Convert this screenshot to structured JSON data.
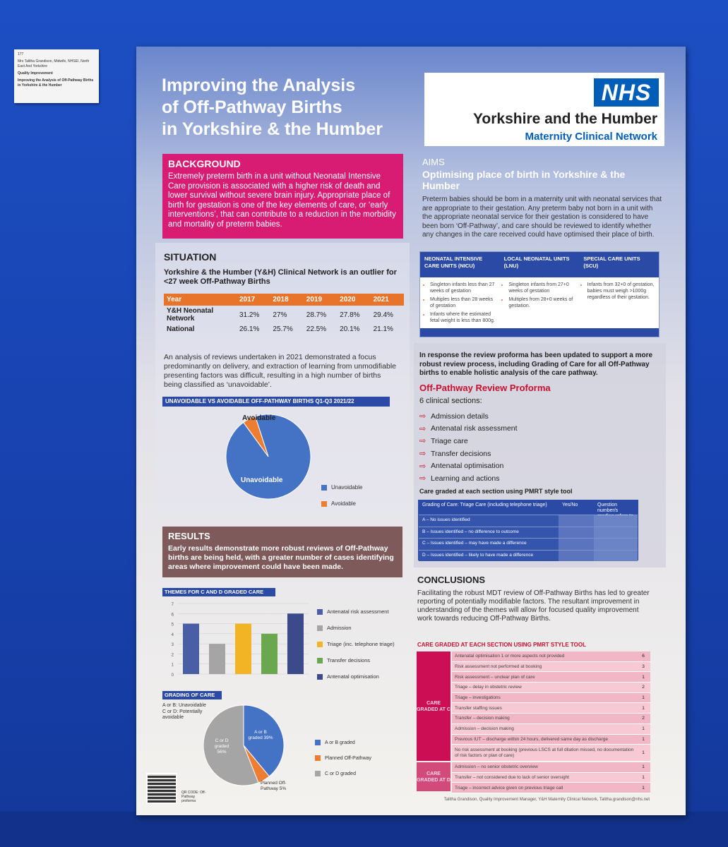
{
  "tag": {
    "line1": "177",
    "line2": "Mrs Talitha Grandison, Midwife, NHSEI, North East And Yorkshire",
    "line3": "Quality Improvement",
    "line4": "Improving the Analysis of Off-Pathway Births in Yorkshire & the Humber"
  },
  "title": {
    "line1": "Improving the Analysis",
    "line2": "of Off-Pathway Births",
    "line3": "in Yorkshire & the Humber"
  },
  "nhs": {
    "logo": "NHS",
    "region": "Yorkshire and the Humber",
    "network": "Maternity Clinical Network"
  },
  "background": {
    "heading": "BACKGROUND",
    "text": "Extremely preterm birth in a unit without Neonatal Intensive Care provision is associated with a higher risk of death and lower survival without severe brain injury. Appropriate place of birth for gestation is one of the key elements of care, or ‘early interventions’, that can contribute to a reduction in the morbidity and mortality of preterm babies."
  },
  "aims": {
    "heading": "AIMS",
    "subheading": "Optimising place of birth in Yorkshire & the Humber",
    "text": "Preterm babies should be born in a maternity unit with neonatal services that are appropriate to their gestation. Any preterm baby not born in a unit with the appropriate neonatal service for their gestation is considered to have been born ‘Off-Pathway’, and care should be reviewed to identify whether any changes in the care received could have optimised their place of birth."
  },
  "units": {
    "nicu": {
      "title": "NEONATAL INTENSIVE CARE UNITS (NICU)",
      "items": [
        "Singleton infants less than 27 weeks of gestation",
        "Multiples less than 28 weeks of gestation",
        "Infants where the estimated fetal weight is less than 800g."
      ]
    },
    "lnu": {
      "title": "LOCAL NEONATAL UNITS (LNU)",
      "items": [
        "Singleton infants from 27+0 weeks of gestation",
        "Multiples from 28+0 weeks of gestation."
      ]
    },
    "scu": {
      "title": "SPECIAL CARE UNITS (SCU)",
      "items": [
        "Infants from 32+0 of gestation, babies must weigh >1000g regardless of their gestation."
      ]
    }
  },
  "situation": {
    "heading": "SITUATION",
    "subheading": "Yorkshire & the Humber (Y&H) Clinical Network is an outlier for <27 week Off-Pathway Births",
    "table": {
      "year_label": "Year",
      "years": [
        "2017",
        "2018",
        "2019",
        "2020",
        "2021"
      ],
      "rows": [
        {
          "label": "Y&H Neonatal Network",
          "values": [
            "31.2%",
            "27%",
            "28.7%",
            "27.8%",
            "29.4%"
          ]
        },
        {
          "label": "National",
          "values": [
            "26.1%",
            "25.7%",
            "22.5%",
            "20.1%",
            "21.1%"
          ]
        }
      ]
    },
    "text": "An analysis of reviews undertaken in 2021 demonstrated a focus predominantly on delivery, and extraction of learning from unmodifiable presenting factors was difficult, resulting in a high number of births being classified as ‘unavoidable’.",
    "pie_title": "UNAVOIDABLE VS AVOIDABLE OFF-PATHWAY BIRTHS Q1-Q3 2021/22"
  },
  "results": {
    "heading": "RESULTS",
    "text": "Early results demonstrate more robust reviews of Off-Pathway births are being held, with a greater number of cases identifying areas where improvement could have been made."
  },
  "themes_title": "THEMES FOR C AND D GRADED CARE",
  "grading_title": "GRADING OF CARE",
  "grading_def": {
    "ab": "A or B: Unavoidable",
    "cd": "C or D: Potentially avoidable"
  },
  "qr": {
    "caption": "QR CODE: Off-Pathway proforma"
  },
  "proforma": {
    "intro": "In response the review proforma has been updated to support a more robust review process, including Grading of Care for all Off-Pathway births to enable holistic analysis of the care pathway.",
    "title": "Off-Pathway Review Proforma",
    "subtitle": "6 clinical sections:",
    "sections": [
      "Admission details",
      "Antenatal risk assessment",
      "Triage care",
      "Transfer decisions",
      "Antenatal optimisation",
      "Learning and actions"
    ],
    "graded_note": "Care graded at each section using PMRT style tool",
    "grade_table": {
      "col1": "Grading of Care: Triage Care (including telephone triage)",
      "col2": "Yes/No",
      "col3": "Question number/s grading refers to",
      "rows": [
        "A – No issues identified",
        "B – Issues identified – no difference to outcome",
        "C – Issues identified – may have made a difference",
        "D – Issues identified – likely to have made a difference"
      ]
    }
  },
  "conclusions": {
    "heading": "CONCLUSIONS",
    "text": "Facilitating the robust MDT review of Off-Pathway Births has led to greater reporting of potentially modifiable factors. The resultant improvement in understanding of the themes will allow for focused quality improvement work towards reducing Off-Pathway Births."
  },
  "pmrt": {
    "title": "CARE GRADED AT EACH SECTION USING PMRT STYLE TOOL",
    "group_c": "CARE GRADED AT C",
    "group_d": "CARE GRADED AT D",
    "rows_c": [
      {
        "text": "Antenatal optimisation 1 or more aspects not provided",
        "n": "6"
      },
      {
        "text": "Risk assessment not performed at booking",
        "n": "3"
      },
      {
        "text": "Risk assessment – unclear plan of care",
        "n": "1"
      },
      {
        "text": "Triage – delay in obstetric review",
        "n": "2"
      },
      {
        "text": "Triage – investigations",
        "n": "1"
      },
      {
        "text": "Transfer staffing issues",
        "n": "1"
      },
      {
        "text": "Transfer – decision making",
        "n": "2"
      },
      {
        "text": "Admission – decision making",
        "n": "1"
      },
      {
        "text": "Previous IUT – discharge within 24 hours, delivered same day as discharge",
        "n": "1"
      },
      {
        "text": "No risk assessment at booking (previous LSCS at full dilation missed, no documentation of risk factors or plan of care)",
        "n": "1"
      }
    ],
    "rows_d": [
      {
        "text": "Admission – no senior obstetric overview",
        "n": "1"
      },
      {
        "text": "Transfer – not considered due to lack of senior oversight",
        "n": "1"
      },
      {
        "text": "Triage – incorrect advice given on previous triage call",
        "n": "1"
      }
    ]
  },
  "footer": "Talitha Grandison, Quality Improvement Manager, Y&H Maternity Clinical Network, Talitha.grandison@nhs.net",
  "chart_data": [
    {
      "type": "pie",
      "title": "UNAVOIDABLE VS AVOIDABLE OFF-PATHWAY BIRTHS Q1-Q3 2021/22",
      "labels": [
        "Unavoidable",
        "Avoidable"
      ],
      "values": [
        95,
        5
      ],
      "colors": [
        "#4472c4",
        "#ed7d31"
      ],
      "legend": "right"
    },
    {
      "type": "bar",
      "title": "THEMES FOR C AND D GRADED CARE",
      "categories": [
        "Antenatal risk assessment",
        "Admission",
        "Triage (inc. telephone triage)",
        "Transfer decisions",
        "Antenatal optimisation"
      ],
      "values": [
        5,
        3,
        5,
        4,
        6
      ],
      "colors": [
        "#4a5ea8",
        "#a5a5a5",
        "#f2b324",
        "#6aa84f",
        "#3c4a8c"
      ],
      "ylim": [
        0,
        7
      ],
      "yticks": [
        "0",
        "1",
        "2",
        "3",
        "4",
        "5",
        "6",
        "7"
      ],
      "legend": "right"
    },
    {
      "type": "pie",
      "title": "GRADING OF CARE",
      "labels": [
        "A or B graded",
        "Planned Off-Pathway",
        "C or D graded"
      ],
      "slice_labels": [
        "A or B graded 39%",
        "Planned Off-Pathway 5%",
        "C or D graded 56%"
      ],
      "values": [
        39,
        5,
        56
      ],
      "colors": [
        "#4472c4",
        "#ed7d31",
        "#a5a5a5"
      ],
      "legend": "right"
    }
  ]
}
